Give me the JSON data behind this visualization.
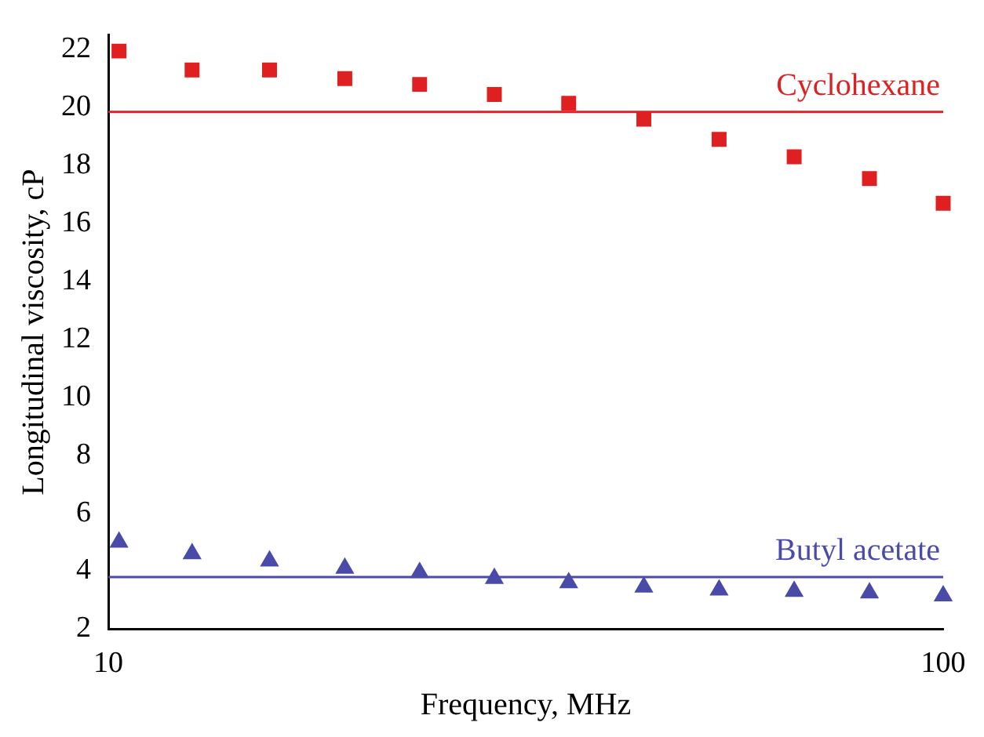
{
  "chart_data": {
    "type": "scatter",
    "xlabel": "Frequency, MHz",
    "ylabel": "Longitudinal viscosity, cP",
    "log": "x",
    "xlim": [
      10,
      100
    ],
    "xticks": [
      10,
      100
    ],
    "ylim": [
      2,
      22.5
    ],
    "yticks": [
      2,
      4,
      6,
      8,
      10,
      12,
      14,
      16,
      18,
      20,
      22
    ],
    "grid": false,
    "legend": false,
    "x": [
      10.3,
      12.6,
      15.6,
      19.2,
      23.6,
      29.0,
      35.6,
      43.8,
      53.9,
      66.3,
      81.6,
      100
    ],
    "series": [
      {
        "color": "#e02020",
        "marker": "square",
        "values": [
          21.95,
          21.3,
          21.3,
          21.0,
          20.8,
          20.45,
          20.15,
          19.6,
          18.9,
          18.3,
          17.55,
          16.7
        ]
      },
      {
        "color": "#4a4aa8",
        "marker": "triangle",
        "values": [
          5.0,
          4.6,
          4.35,
          4.1,
          3.95,
          3.75,
          3.6,
          3.45,
          3.35,
          3.3,
          3.25,
          3.15
        ]
      }
    ],
    "ref_lines": [
      {
        "axis": "y",
        "value": 19.85,
        "label": "Cyclohexane",
        "color": "#e02020"
      },
      {
        "axis": "y",
        "value": 3.8,
        "label": "Butyl acetate",
        "color": "#4a4aa8"
      }
    ]
  }
}
